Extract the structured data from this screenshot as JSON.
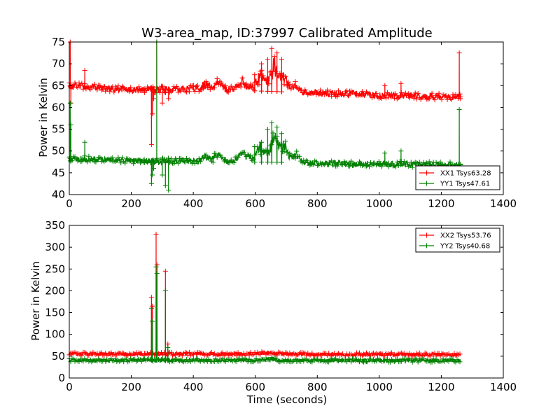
{
  "chart_data": [
    {
      "type": "line",
      "title": "W3-area_map, ID:37997 Calibrated Amplitude",
      "xlabel": "",
      "ylabel": "Power in Kelvin",
      "xlim": [
        0,
        1400
      ],
      "ylim": [
        40,
        75
      ],
      "xticks": [
        "0",
        "200",
        "400",
        "600",
        "800",
        "1000",
        "1200",
        "1400"
      ],
      "yticks": [
        "40",
        "45",
        "50",
        "55",
        "60",
        "65",
        "70",
        "75"
      ],
      "grid": false,
      "legend_position": "lower-right",
      "x_end": 1262,
      "series": [
        {
          "name": "XX1 Tsys63.28",
          "color": "#ff0000",
          "baseline": [
            [
              0,
              65
            ],
            [
              200,
              64
            ],
            [
              400,
              64.3
            ],
            [
              800,
              63.3
            ],
            [
              1000,
              62.8
            ],
            [
              1262,
              62.4
            ]
          ],
          "noise": 0.8,
          "bumps": [
            [
              440,
              1.0,
              15
            ],
            [
              480,
              1.6,
              18
            ],
            [
              560,
              1.8,
              22
            ],
            [
              620,
              3.5,
              22
            ],
            [
              660,
              5.5,
              14
            ],
            [
              690,
              3.5,
              18
            ],
            [
              730,
              1.5,
              15
            ]
          ],
          "spikes": [
            [
              3,
              75
            ],
            [
              5,
              61
            ],
            [
              50,
              68.5
            ],
            [
              265,
              51.5
            ],
            [
              268,
              58.5
            ],
            [
              272,
              62
            ],
            [
              282,
              75
            ],
            [
              300,
              61
            ],
            [
              310,
              63.5
            ],
            [
              320,
              62
            ],
            [
              598,
              67.5
            ],
            [
              620,
              70
            ],
            [
              640,
              71
            ],
            [
              653,
              73.5
            ],
            [
              670,
              72.5
            ],
            [
              685,
              71
            ],
            [
              1018,
              65
            ],
            [
              1070,
              65.5
            ],
            [
              1258,
              72.5
            ],
            [
              1262,
              62
            ]
          ]
        },
        {
          "name": "YY1 Tsys47.61",
          "color": "#008000",
          "baseline": [
            [
              0,
              48.3
            ],
            [
              200,
              47.8
            ],
            [
              400,
              47.6
            ],
            [
              800,
              47.3
            ],
            [
              1000,
              47.0
            ],
            [
              1262,
              46.8
            ]
          ],
          "noise": 0.7,
          "bumps": [
            [
              440,
              1.0,
              15
            ],
            [
              480,
              1.5,
              18
            ],
            [
              560,
              2.0,
              22
            ],
            [
              620,
              3.5,
              22
            ],
            [
              660,
              6.0,
              14
            ],
            [
              690,
              4.0,
              18
            ],
            [
              730,
              2.0,
              15
            ]
          ],
          "spikes": [
            [
              3,
              61
            ],
            [
              5,
              56
            ],
            [
              50,
              52
            ],
            [
              265,
              42.5
            ],
            [
              268,
              44.5
            ],
            [
              272,
              46
            ],
            [
              282,
              75
            ],
            [
              300,
              44.5
            ],
            [
              310,
              42
            ],
            [
              320,
              41
            ],
            [
              598,
              51
            ],
            [
              620,
              52
            ],
            [
              640,
              55
            ],
            [
              653,
              56.5
            ],
            [
              670,
              55.5
            ],
            [
              685,
              54
            ],
            [
              1018,
              49.5
            ],
            [
              1070,
              50
            ],
            [
              1258,
              59.5
            ],
            [
              1262,
              47
            ]
          ]
        }
      ]
    },
    {
      "type": "line",
      "title": "",
      "xlabel": "Time (seconds)",
      "ylabel": "Power in Kelvin",
      "xlim": [
        0,
        1400
      ],
      "ylim": [
        0,
        350
      ],
      "xticks": [
        "0",
        "200",
        "400",
        "600",
        "800",
        "1000",
        "1200",
        "1400"
      ],
      "yticks": [
        "0",
        "50",
        "100",
        "150",
        "200",
        "250",
        "300",
        "350"
      ],
      "grid": false,
      "legend_position": "upper-right",
      "x_end": 1262,
      "series": [
        {
          "name": "XX2 Tsys53.76",
          "color": "#ff0000",
          "baseline": [
            [
              0,
              55
            ],
            [
              400,
              55
            ],
            [
              800,
              54.5
            ],
            [
              1262,
              53.5
            ]
          ],
          "noise": 4,
          "bumps": [
            [
              640,
              4,
              30
            ]
          ],
          "spikes": [
            [
              265,
              185
            ],
            [
              268,
              165
            ],
            [
              280,
              330
            ],
            [
              283,
              260
            ],
            [
              310,
              245
            ],
            [
              318,
              78
            ]
          ]
        },
        {
          "name": "YY2 Tsys40.68",
          "color": "#008000",
          "baseline": [
            [
              0,
              41
            ],
            [
              400,
              41
            ],
            [
              800,
              40.5
            ],
            [
              1262,
              40
            ]
          ],
          "noise": 4,
          "bumps": [
            [
              640,
              3,
              30
            ]
          ],
          "spikes": [
            [
              265,
              160
            ],
            [
              268,
              130
            ],
            [
              280,
              255
            ],
            [
              283,
              240
            ],
            [
              310,
              200
            ],
            [
              318,
              70
            ]
          ]
        }
      ]
    }
  ]
}
